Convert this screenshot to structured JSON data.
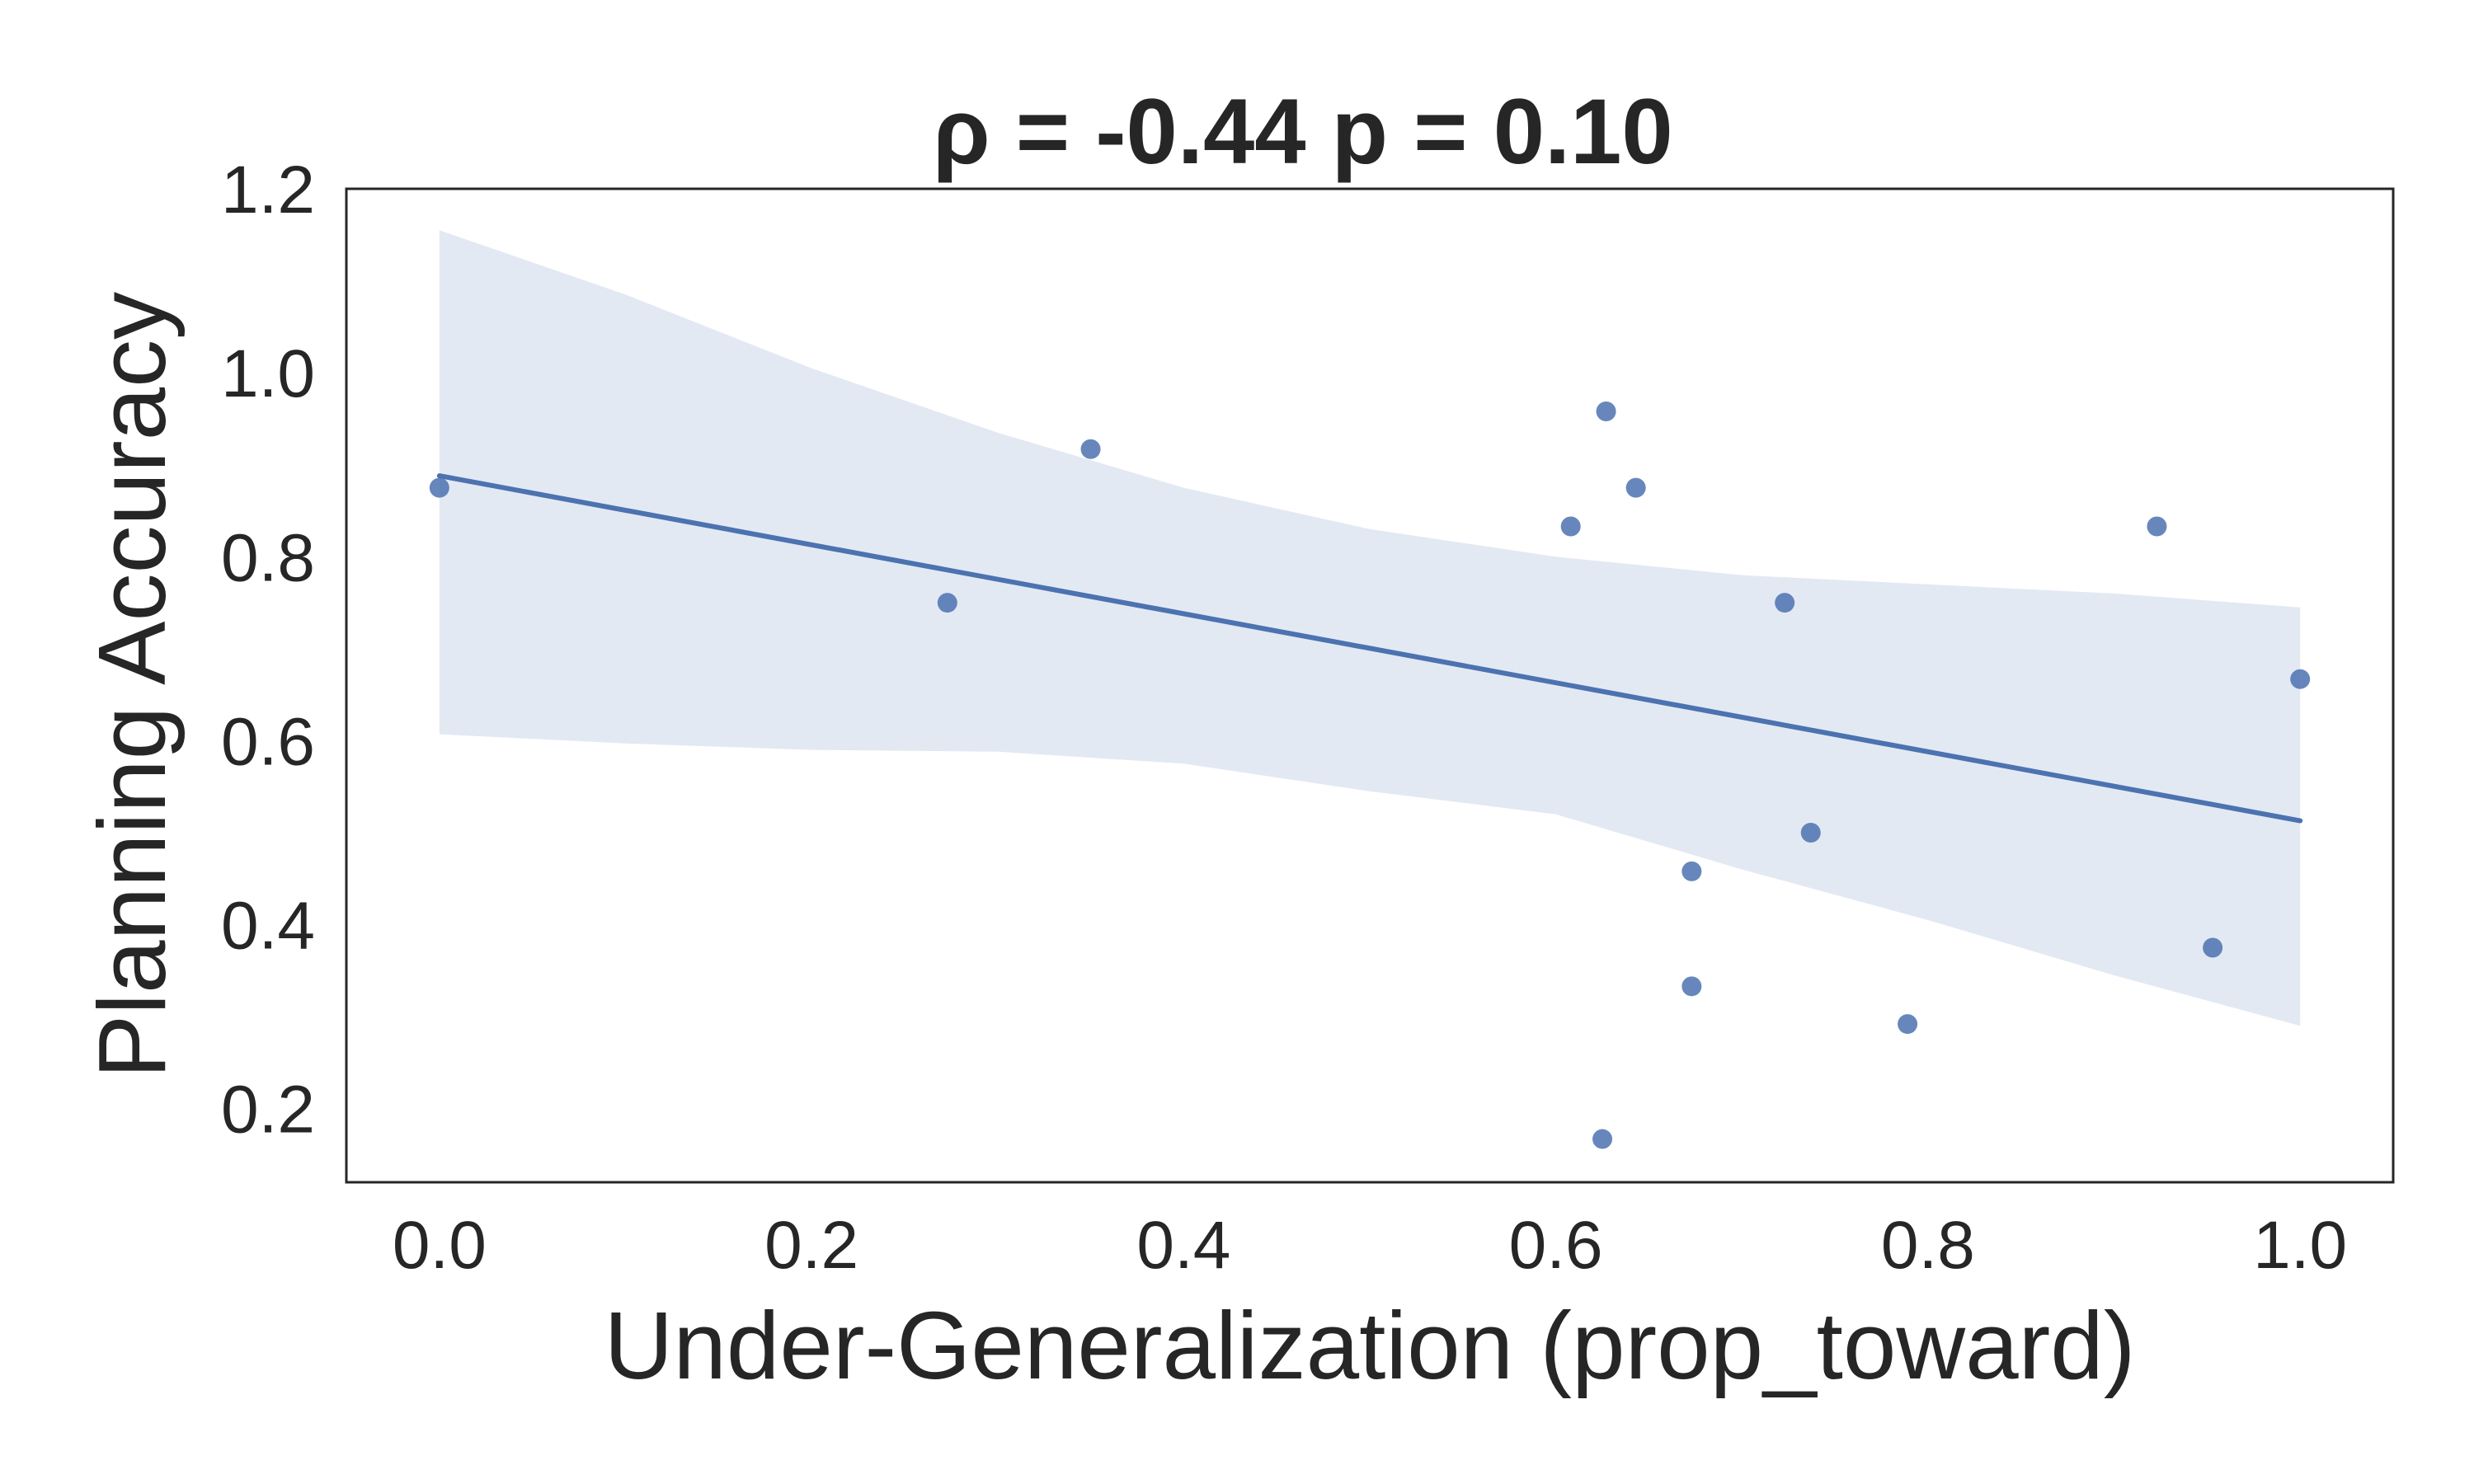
{
  "chart_data": {
    "type": "scatter",
    "title": "ρ = -0.44 p = 0.10",
    "xlabel": "Under-Generalization (prop_toward)",
    "ylabel": "Planning Accuracy",
    "xlim": [
      -0.05,
      1.05
    ],
    "ylim": [
      0.12,
      1.2
    ],
    "xticks": [
      "0.0",
      "0.2",
      "0.4",
      "0.6",
      "0.8",
      "1.0"
    ],
    "yticks": [
      "0.2",
      "0.4",
      "0.6",
      "0.8",
      "1.0",
      "1.2"
    ],
    "grid": false,
    "points": [
      {
        "x": 0.0,
        "y": 0.875
      },
      {
        "x": 0.273,
        "y": 0.75
      },
      {
        "x": 0.35,
        "y": 0.917
      },
      {
        "x": 0.608,
        "y": 0.833
      },
      {
        "x": 0.625,
        "y": 0.167
      },
      {
        "x": 0.627,
        "y": 0.958
      },
      {
        "x": 0.643,
        "y": 0.875
      },
      {
        "x": 0.673,
        "y": 0.458
      },
      {
        "x": 0.673,
        "y": 0.333
      },
      {
        "x": 0.723,
        "y": 0.75
      },
      {
        "x": 0.737,
        "y": 0.5
      },
      {
        "x": 0.789,
        "y": 0.292
      },
      {
        "x": 0.923,
        "y": 0.833
      },
      {
        "x": 0.953,
        "y": 0.375
      },
      {
        "x": 1.0,
        "y": 0.667
      }
    ],
    "regression_line": {
      "x": [
        0.0,
        1.0
      ],
      "y": [
        0.888,
        0.513
      ]
    },
    "confidence_band": {
      "x": [
        0.0,
        0.1,
        0.2,
        0.3,
        0.4,
        0.5,
        0.6,
        0.7,
        0.8,
        0.9,
        1.0
      ],
      "upper": [
        1.155,
        1.085,
        1.005,
        0.935,
        0.875,
        0.83,
        0.8,
        0.78,
        0.77,
        0.76,
        0.745
      ],
      "lower": [
        0.607,
        0.597,
        0.59,
        0.588,
        0.575,
        0.545,
        0.52,
        0.46,
        0.405,
        0.345,
        0.29
      ]
    },
    "colors": {
      "points": "#4c72b0",
      "line": "#4c72b0",
      "band": "#e3e9f3",
      "text": "#262626",
      "frame": "#262626"
    }
  }
}
